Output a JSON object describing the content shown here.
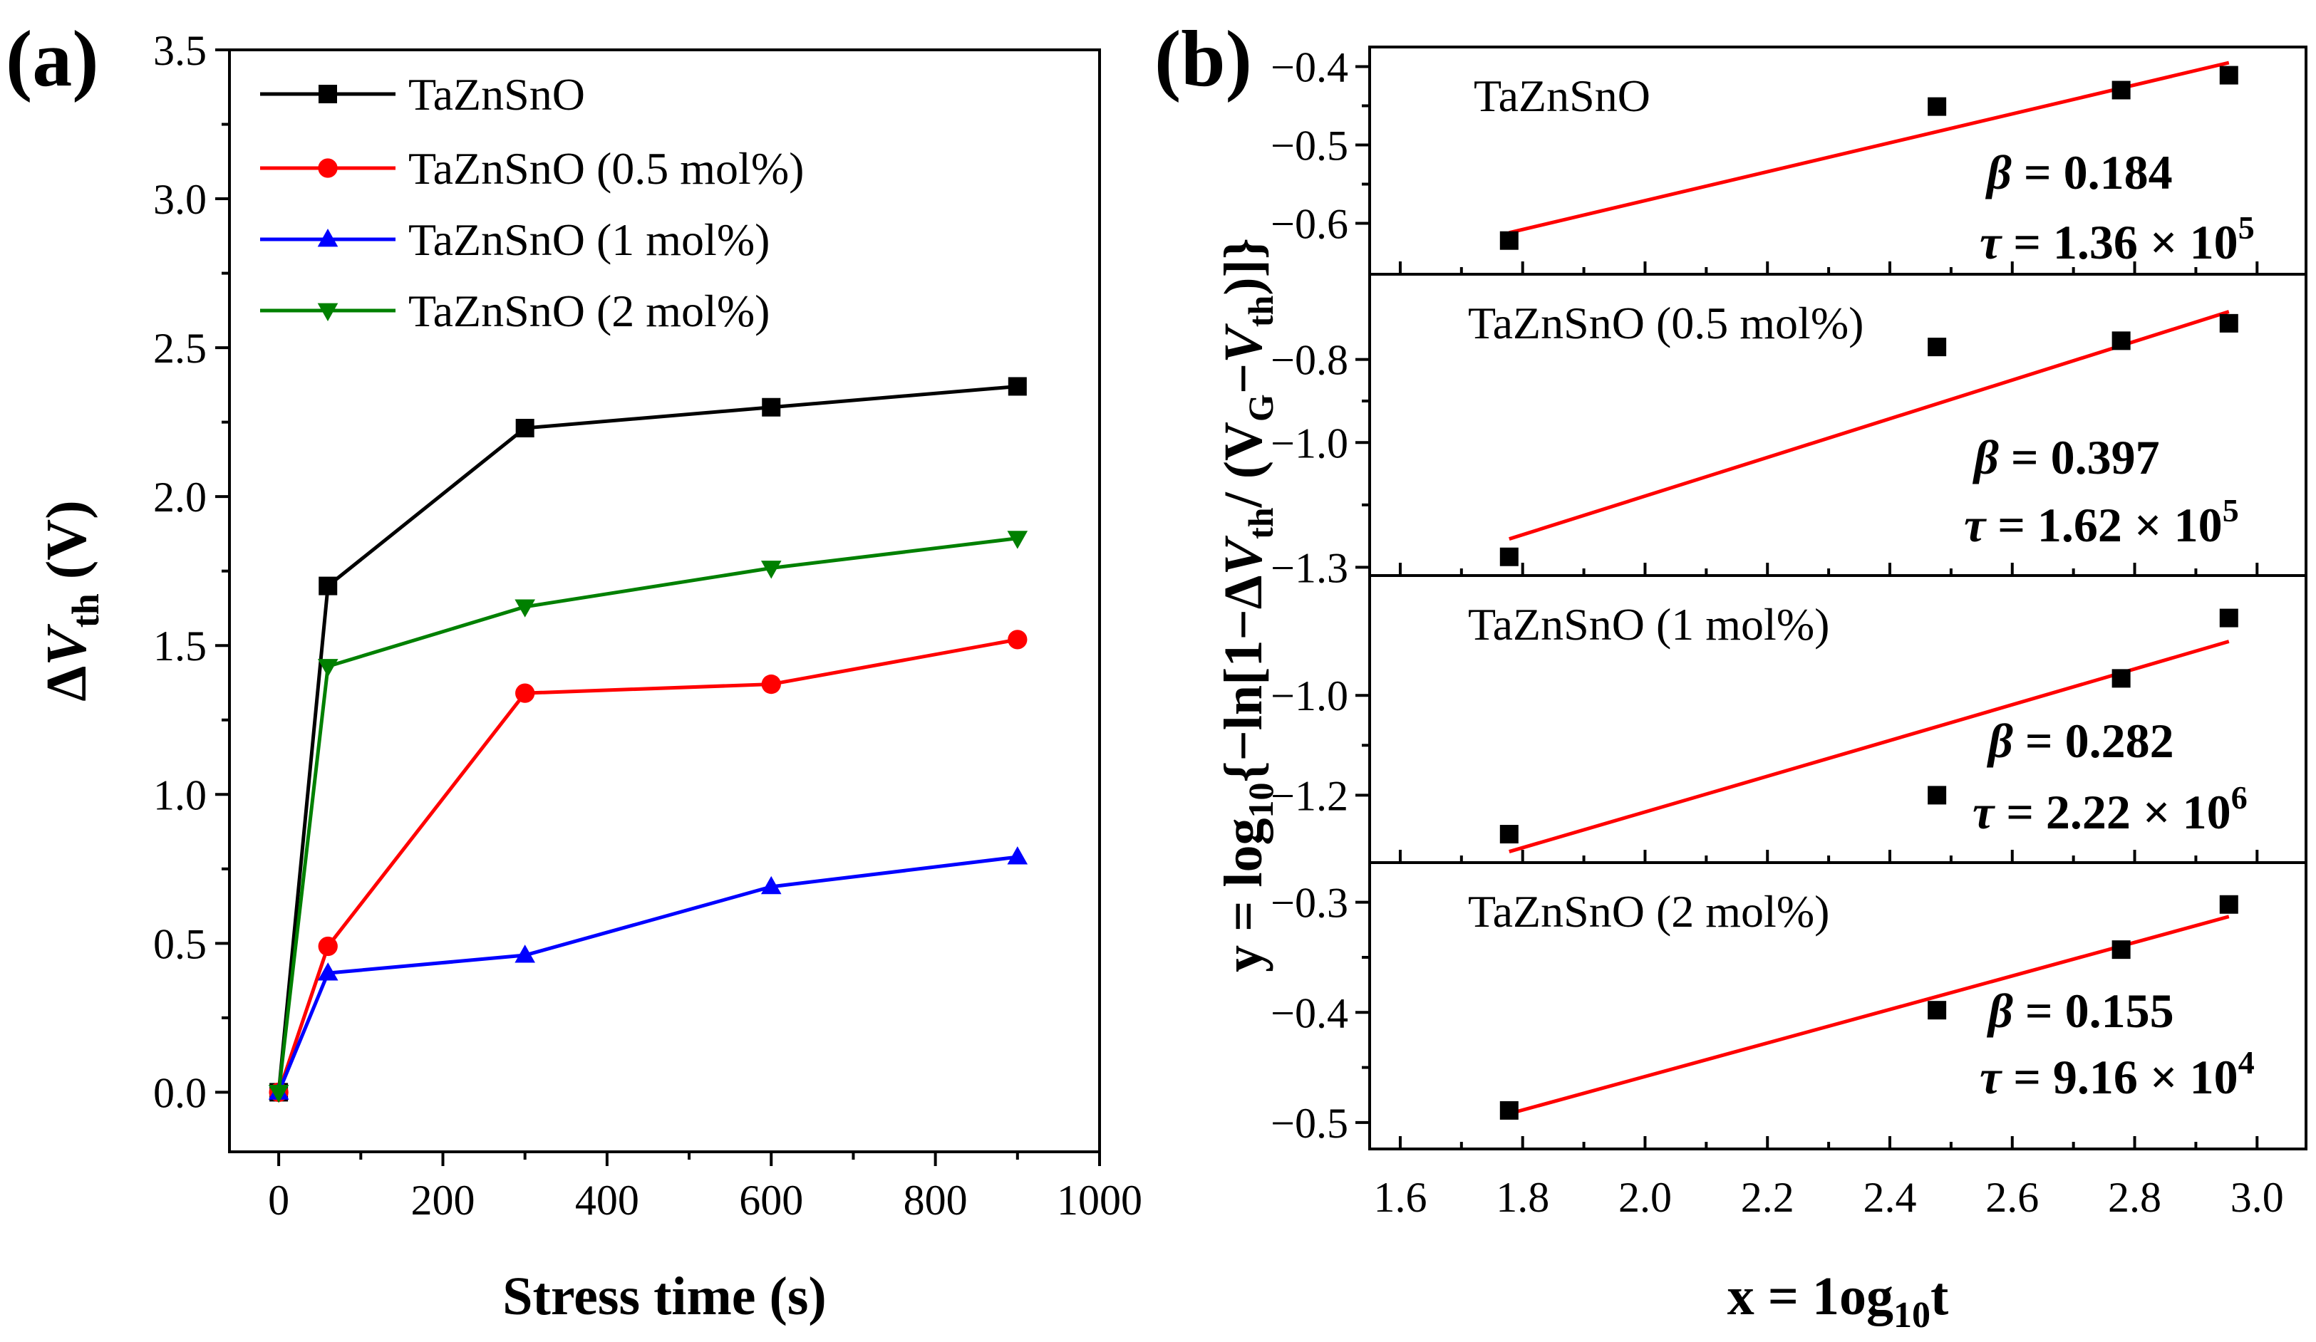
{
  "panel_a": {
    "label": "(a)"
  },
  "panel_b": {
    "label": "(b)"
  },
  "chart_data": [
    {
      "type": "line",
      "panel": "(a)",
      "xlabel": "Stress time (s)",
      "ylabel_main": "ΔV",
      "ylabel_sub": "th",
      "ylabel_unit": " (V)",
      "xlim": [
        -60,
        1000
      ],
      "ylim": [
        -0.2,
        3.5
      ],
      "xticks": [
        0,
        200,
        400,
        600,
        800,
        1000
      ],
      "xtick_labels": [
        "0",
        "200",
        "400",
        "600",
        "800",
        "1000"
      ],
      "yticks": [
        0,
        0.5,
        1,
        1.5,
        2,
        2.5,
        3,
        3.5
      ],
      "ytick_labels": [
        "0.0",
        "0.5",
        "1.0",
        "1.5",
        "2.0",
        "2.5",
        "3.0",
        "3.5"
      ],
      "legend_position": "top-left",
      "x": [
        0,
        60,
        300,
        600,
        900
      ],
      "series": [
        {
          "name": "TaZnSnO",
          "marker": "square",
          "color": "#000000",
          "values": [
            0,
            1.7,
            2.23,
            2.3,
            2.37
          ]
        },
        {
          "name": "TaZnSnO (0.5 mol%)",
          "marker": "circle",
          "color": "#ff0000",
          "values": [
            0,
            0.49,
            1.34,
            1.37,
            1.52
          ]
        },
        {
          "name": "TaZnSnO (1 mol%)",
          "marker": "triangle-up",
          "color": "#0000ff",
          "values": [
            0,
            0.4,
            0.46,
            0.69,
            0.79
          ]
        },
        {
          "name": "TaZnSnO (2 mol%)",
          "marker": "triangle-down",
          "color": "#008000",
          "values": [
            0,
            1.43,
            1.63,
            1.76,
            1.86
          ]
        }
      ]
    },
    {
      "type": "scatter",
      "panel": "(b)",
      "xlabel_main": "x = 1og",
      "xlabel_sub": "10",
      "xlabel_end": "t",
      "ylabel_text": "y = log₁₀{−ln[1−ΔV_th/ (V_G−V_th)]}",
      "ylabel_parts": [
        "y = log",
        "10",
        "{−ln[1−Δ",
        "V",
        "th",
        "/ (V",
        "G",
        "−",
        "V",
        "th",
        ")]}"
      ],
      "xlim": [
        1.55,
        3.08
      ],
      "xticks": [
        1.6,
        1.8,
        2.0,
        2.2,
        2.4,
        2.6,
        2.8,
        3.0
      ],
      "xtick_labels": [
        "1.6",
        "1.8",
        "2.0",
        "2.2",
        "2.4",
        "2.6",
        "2.8",
        "3.0"
      ],
      "fit_color": "#ff0000",
      "marker_color": "#000000",
      "subplots": [
        {
          "name": "TaZnSnO",
          "x": [
            1.778,
            2.477,
            2.778,
            2.954
          ],
          "y": [
            -0.622,
            -0.451,
            -0.43,
            -0.411
          ],
          "fit": {
            "x": [
              1.778,
              2.954
            ],
            "y": [
              -0.612,
              -0.395
            ]
          },
          "ylim": [
            -0.665,
            -0.375
          ],
          "yticks": [
            -0.6,
            -0.5,
            -0.4
          ],
          "ytick_labels": [
            "−0.6",
            "−0.5",
            "−0.4"
          ],
          "beta_symbol": "β",
          "beta_value": " = 0.184",
          "tau_symbol": "τ",
          "tau_value": " = 1.36 × 10",
          "tau_exp": "5"
        },
        {
          "name": "TaZnSnO (0.5 mol%)",
          "x": [
            1.778,
            2.477,
            2.778,
            2.954
          ],
          "y": [
            -1.275,
            -0.77,
            -0.755,
            -0.713
          ],
          "fit": {
            "x": [
              1.778,
              2.954
            ],
            "y": [
              -1.232,
              -0.685
            ]
          },
          "ylim": [
            -1.32,
            -0.595
          ],
          "yticks": [
            -1.3,
            -1.0,
            -0.8
          ],
          "ytick_labels": [
            "−1.3",
            "−1.0",
            "−0.8"
          ],
          "beta_symbol": "β",
          "beta_value": " = 0.397",
          "tau_symbol": "τ",
          "tau_value": " = 1.62 × 10",
          "tau_exp": "5"
        },
        {
          "name": "TaZnSnO (1 mol%)",
          "x": [
            1.778,
            2.477,
            2.778,
            2.954
          ],
          "y": [
            -1.278,
            -1.2,
            -0.966,
            -0.845
          ],
          "fit": {
            "x": [
              1.778,
              2.954
            ],
            "y": [
              -1.313,
              -0.892
            ]
          },
          "ylim": [
            -1.335,
            -0.76
          ],
          "yticks": [
            -1.2,
            -1.0
          ],
          "ytick_labels": [
            "−1.2",
            "−1.0"
          ],
          "beta_symbol": "β",
          "beta_value": " = 0.282",
          "tau_symbol": "τ",
          "tau_value": " = 2.22 × 10",
          "tau_exp": "6"
        },
        {
          "name": "TaZnSnO (2 mol%)",
          "x": [
            1.778,
            2.477,
            2.778,
            2.954
          ],
          "y": [
            -0.489,
            -0.398,
            -0.343,
            -0.302
          ],
          "fit": {
            "x": [
              1.778,
              2.954
            ],
            "y": [
              -0.492,
              -0.313
            ]
          },
          "ylim": [
            -0.524,
            -0.264
          ],
          "yticks": [
            -0.5,
            -0.4,
            -0.3
          ],
          "ytick_labels": [
            "−0.5",
            "−0.4",
            "−0.3"
          ],
          "beta_symbol": "β",
          "beta_value": " = 0.155",
          "tau_symbol": "τ",
          "tau_value": " = 9.16 × 10",
          "tau_exp": "4"
        }
      ]
    }
  ]
}
